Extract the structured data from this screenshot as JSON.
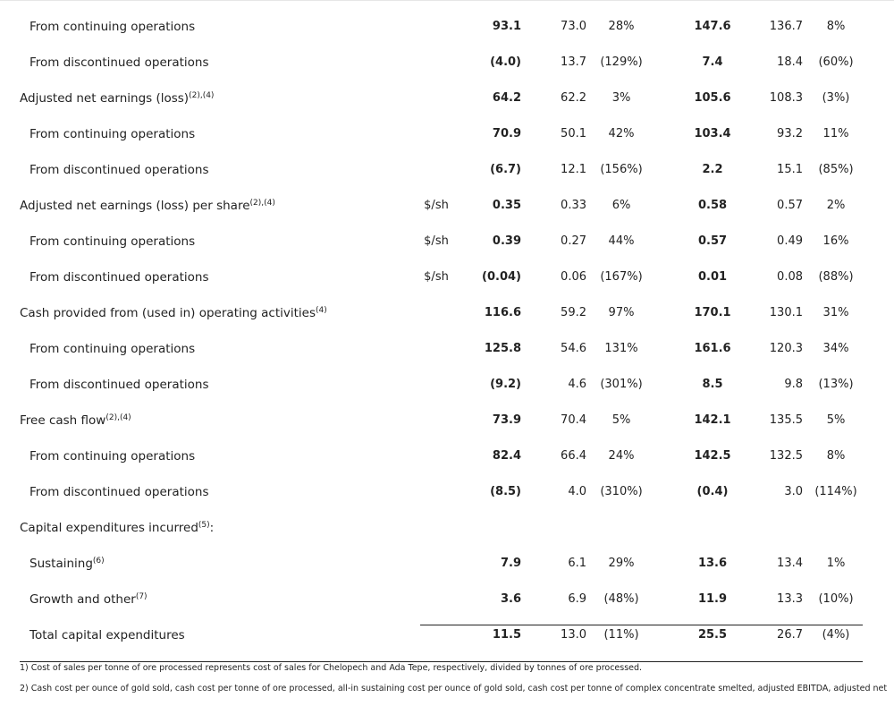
{
  "table": {
    "rows": [
      {
        "label": "From continuing operations",
        "level": 1,
        "values": [
          "93.1",
          "73.0",
          "28%",
          "147.6",
          "136.7",
          "8%"
        ]
      },
      {
        "label": "From discontinued operations",
        "level": 1,
        "values": [
          "(4.0)",
          "13.7",
          "(129%)",
          "7.4",
          "18.4",
          "(60%)"
        ]
      },
      {
        "label": "Adjusted net earnings (loss)",
        "note": "(2),(4)",
        "level": 0,
        "values": [
          "64.2",
          "62.2",
          "3%",
          "105.6",
          "108.3",
          "(3%)"
        ]
      },
      {
        "label": "From continuing operations",
        "level": 1,
        "values": [
          "70.9",
          "50.1",
          "42%",
          "103.4",
          "93.2",
          "11%"
        ]
      },
      {
        "label": "From discontinued operations",
        "level": 1,
        "values": [
          "(6.7)",
          "12.1",
          "(156%)",
          "2.2",
          "15.1",
          "(85%)"
        ]
      },
      {
        "label": "Adjusted net earnings (loss) per share",
        "note": "(2),(4)",
        "level": 0,
        "unit": "$/sh",
        "values": [
          "0.35",
          "0.33",
          "6%",
          "0.58",
          "0.57",
          "2%"
        ]
      },
      {
        "label": "From continuing operations",
        "level": 1,
        "unit": "$/sh",
        "values": [
          "0.39",
          "0.27",
          "44%",
          "0.57",
          "0.49",
          "16%"
        ]
      },
      {
        "label": "From discontinued operations",
        "level": 1,
        "unit": "$/sh",
        "values": [
          "(0.04)",
          "0.06",
          "(167%)",
          "0.01",
          "0.08",
          "(88%)"
        ]
      },
      {
        "label": "Cash provided from (used in) operating activities",
        "note": "(4)",
        "level": 0,
        "values": [
          "116.6",
          "59.2",
          "97%",
          "170.1",
          "130.1",
          "31%"
        ]
      },
      {
        "label": "From continuing operations",
        "level": 1,
        "values": [
          "125.8",
          "54.6",
          "131%",
          "161.6",
          "120.3",
          "34%"
        ]
      },
      {
        "label": "From discontinued operations",
        "level": 1,
        "values": [
          "(9.2)",
          "4.6",
          "(301%)",
          "8.5",
          "9.8",
          "(13%)"
        ]
      },
      {
        "label": "Free cash flow",
        "note": "(2),(4)",
        "level": 0,
        "values": [
          "73.9",
          "70.4",
          "5%",
          "142.1",
          "135.5",
          "5%"
        ]
      },
      {
        "label": "From continuing operations",
        "level": 1,
        "values": [
          "82.4",
          "66.4",
          "24%",
          "142.5",
          "132.5",
          "8%"
        ]
      },
      {
        "label": "From discontinued operations",
        "level": 1,
        "values": [
          "(8.5)",
          "4.0",
          "(310%)",
          "(0.4)",
          "3.0",
          "(114%)"
        ]
      },
      {
        "label": "Capital expenditures incurred",
        "note": "(5)",
        "suffix": ":",
        "level": 0
      },
      {
        "label": "Sustaining",
        "note": "(6)",
        "level": 1,
        "values": [
          "7.9",
          "6.1",
          "29%",
          "13.6",
          "13.4",
          "1%"
        ]
      },
      {
        "label": "Growth and other",
        "note": "(7)",
        "level": 1,
        "values": [
          "3.6",
          "6.9",
          "(48%)",
          "11.9",
          "13.3",
          "(10%)"
        ]
      },
      {
        "label": "Total capital expenditures",
        "level": 1,
        "values": [
          "11.5",
          "13.0",
          "(11%)",
          "25.5",
          "26.7",
          "(4%)"
        ]
      }
    ]
  },
  "footnotes": [
    "1) Cost of sales per tonne of ore processed represents cost of sales for Chelopech and Ada Tepe, respectively, divided by tonnes of ore processed.",
    "2) Cash cost per ounce of gold sold, cash cost per tonne of ore processed, all-in sustaining cost per ounce of gold sold, cash cost per tonne of complex concentrate smelted, adjusted EBITDA, adjusted net"
  ]
}
